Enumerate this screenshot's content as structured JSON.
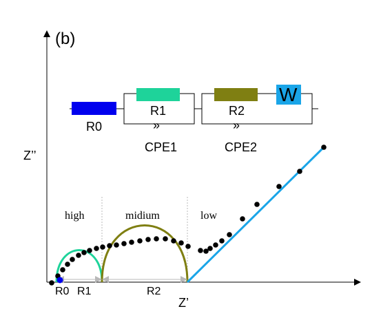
{
  "panel_label": "(b)",
  "axes": {
    "y_label": "Z’’",
    "x_label": "Z’",
    "x_ticks": [
      "R0",
      "R1",
      "R2"
    ]
  },
  "regions": {
    "high": "high",
    "medium": "midium",
    "low": "low"
  },
  "circuit": {
    "r0_label": "R0",
    "r1_label": "R1",
    "r2_label": "R2",
    "cpe1_symbol": "»",
    "cpe1_label": "CPE1",
    "cpe2_symbol": "»",
    "cpe2_label": "CPE2",
    "w_label": "W"
  },
  "colors": {
    "r0": "#0000ee",
    "r1": "#1ed39a",
    "r2": "#7f7f12",
    "w": "#1aa5e8",
    "fit_line": "#1aa5e8",
    "points": "#000000",
    "arrows": "#b8b8b8"
  }
}
